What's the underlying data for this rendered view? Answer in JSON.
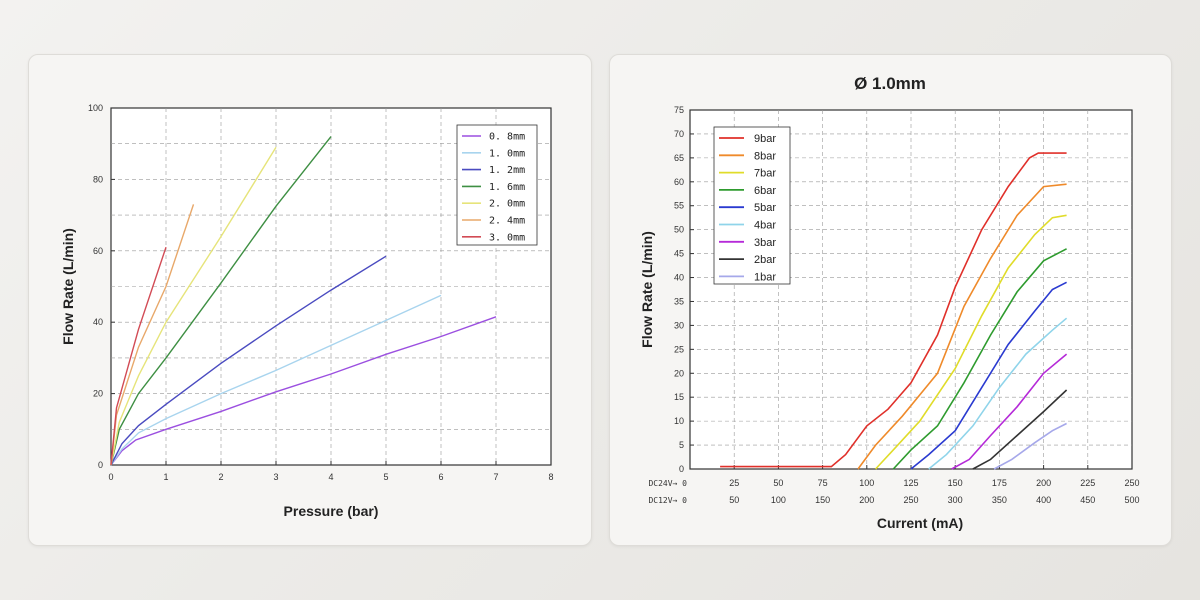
{
  "chart_data": [
    {
      "type": "line",
      "title": "",
      "xlabel": "Pressure (bar)",
      "ylabel": "Flow Rate (L/min)",
      "xlim": [
        0,
        8
      ],
      "ylim": [
        0,
        100
      ],
      "xticks": [
        "0",
        "1",
        "2",
        "3",
        "4",
        "5",
        "6",
        "7",
        "8"
      ],
      "yticks": [
        "0",
        "20",
        "40",
        "60",
        "80",
        "100"
      ],
      "grid": true,
      "legend_position": "top-right",
      "series": [
        {
          "name": "0. 8mm",
          "color": "#9b4fe0",
          "points": [
            [
              0,
              0
            ],
            [
              0.2,
              4
            ],
            [
              0.45,
              7
            ],
            [
              1,
              10
            ],
            [
              2,
              15
            ],
            [
              3,
              20.5
            ],
            [
              4,
              25.5
            ],
            [
              5,
              31
            ],
            [
              6,
              36
            ],
            [
              7,
              41.5
            ]
          ]
        },
        {
          "name": "1. 0mm",
          "color": "#a8d4ee",
          "points": [
            [
              0,
              0
            ],
            [
              0.2,
              4.5
            ],
            [
              0.5,
              9
            ],
            [
              1,
              13
            ],
            [
              2,
              20
            ],
            [
              3,
              26.5
            ],
            [
              4,
              33.5
            ],
            [
              5,
              40.5
            ],
            [
              6,
              47.5
            ]
          ]
        },
        {
          "name": "1. 2mm",
          "color": "#4a4bc0",
          "points": [
            [
              0,
              0
            ],
            [
              0.2,
              6
            ],
            [
              0.5,
              11
            ],
            [
              1,
              17
            ],
            [
              2,
              28.5
            ],
            [
              3,
              39
            ],
            [
              4,
              49
            ],
            [
              5,
              58.5
            ]
          ]
        },
        {
          "name": "1. 6mm",
          "color": "#3e8f43",
          "points": [
            [
              0,
              0
            ],
            [
              0.15,
              10
            ],
            [
              0.5,
              20
            ],
            [
              1,
              30
            ],
            [
              2,
              51
            ],
            [
              3,
              72.5
            ],
            [
              4,
              92
            ]
          ]
        },
        {
          "name": "2. 0mm",
          "color": "#e6e47a",
          "points": [
            [
              0,
              0
            ],
            [
              0.15,
              12
            ],
            [
              0.5,
              25
            ],
            [
              1,
              40
            ],
            [
              2,
              64
            ],
            [
              3,
              89
            ]
          ]
        },
        {
          "name": "2. 4mm",
          "color": "#e8a86a",
          "points": [
            [
              0,
              0
            ],
            [
              0.1,
              14
            ],
            [
              0.5,
              33
            ],
            [
              1,
              50
            ],
            [
              1.5,
              73
            ]
          ]
        },
        {
          "name": "3. 0mm",
          "color": "#d24b55",
          "points": [
            [
              0,
              0
            ],
            [
              0.1,
              16
            ],
            [
              0.5,
              38
            ],
            [
              1,
              61
            ]
          ]
        }
      ]
    },
    {
      "type": "line",
      "title": "Ø 1.0mm",
      "xlabel": "Current (mA)",
      "ylabel": "Flow Rate (L/min)",
      "xlim": [
        0,
        250
      ],
      "ylim": [
        0,
        75
      ],
      "x_axis_rows": [
        {
          "label": "DC24V→ 0",
          "ticks": [
            "25",
            "50",
            "75",
            "100",
            "125",
            "150",
            "175",
            "200",
            "225",
            "250"
          ]
        },
        {
          "label": "DC12V→ 0",
          "ticks": [
            "50",
            "100",
            "150",
            "200",
            "250",
            "300",
            "350",
            "400",
            "450",
            "500"
          ]
        }
      ],
      "yticks": [
        "0",
        "5",
        "10",
        "15",
        "20",
        "25",
        "30",
        "35",
        "40",
        "45",
        "50",
        "55",
        "60",
        "65",
        "70",
        "75"
      ],
      "grid": true,
      "legend_position": "top-left",
      "series": [
        {
          "name": "9bar",
          "color": "#e0302a",
          "points": [
            [
              17,
              0.5
            ],
            [
              80,
              0.5
            ],
            [
              88,
              3
            ],
            [
              100,
              9
            ],
            [
              112,
              12.5
            ],
            [
              125,
              18
            ],
            [
              140,
              28
            ],
            [
              150,
              38
            ],
            [
              165,
              50
            ],
            [
              180,
              59
            ],
            [
              192,
              65
            ],
            [
              197,
              66
            ],
            [
              213,
              66
            ]
          ]
        },
        {
          "name": "8bar",
          "color": "#ef8a2a",
          "points": [
            [
              95,
              0
            ],
            [
              105,
              5
            ],
            [
              120,
              11
            ],
            [
              140,
              20
            ],
            [
              155,
              34
            ],
            [
              170,
              44
            ],
            [
              185,
              53
            ],
            [
              200,
              59
            ],
            [
              213,
              59.5
            ]
          ]
        },
        {
          "name": "7bar",
          "color": "#e0dc2a",
          "points": [
            [
              105,
              0
            ],
            [
              115,
              4
            ],
            [
              130,
              10
            ],
            [
              150,
              21
            ],
            [
              165,
              32
            ],
            [
              180,
              42
            ],
            [
              195,
              49
            ],
            [
              205,
              52.5
            ],
            [
              213,
              53
            ]
          ]
        },
        {
          "name": "6bar",
          "color": "#2e9b2e",
          "points": [
            [
              115,
              0
            ],
            [
              125,
              4
            ],
            [
              140,
              9
            ],
            [
              155,
              18
            ],
            [
              170,
              28
            ],
            [
              185,
              37
            ],
            [
              200,
              43.5
            ],
            [
              213,
              46
            ]
          ]
        },
        {
          "name": "5bar",
          "color": "#2a3ad0",
          "points": [
            [
              125,
              0
            ],
            [
              135,
              3
            ],
            [
              150,
              8
            ],
            [
              165,
              17
            ],
            [
              180,
              26
            ],
            [
              195,
              33
            ],
            [
              205,
              37.5
            ],
            [
              213,
              39
            ]
          ]
        },
        {
          "name": "4bar",
          "color": "#8fd4ea",
          "points": [
            [
              135,
              0
            ],
            [
              145,
              3
            ],
            [
              160,
              9
            ],
            [
              175,
              17
            ],
            [
              190,
              24
            ],
            [
              205,
              29
            ],
            [
              213,
              31.5
            ]
          ]
        },
        {
          "name": "3bar",
          "color": "#b52ad8",
          "points": [
            [
              148,
              0
            ],
            [
              158,
              2
            ],
            [
              170,
              7
            ],
            [
              185,
              13
            ],
            [
              200,
              20
            ],
            [
              213,
              24
            ]
          ]
        },
        {
          "name": "2bar",
          "color": "#333333",
          "points": [
            [
              160,
              0
            ],
            [
              170,
              2
            ],
            [
              185,
              7
            ],
            [
              200,
              12
            ],
            [
              213,
              16.5
            ]
          ]
        },
        {
          "name": "1bar",
          "color": "#a6a8ea",
          "points": [
            [
              172,
              0
            ],
            [
              182,
              2
            ],
            [
              195,
              5.5
            ],
            [
              205,
              8
            ],
            [
              213,
              9.5
            ]
          ]
        }
      ]
    }
  ]
}
